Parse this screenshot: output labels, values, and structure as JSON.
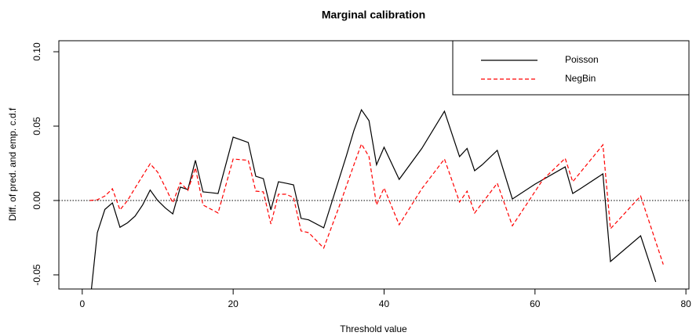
{
  "chart_data": {
    "type": "line",
    "title": "Marginal calibration",
    "x_label": "Threshold value",
    "y_label": "Diff. of pred. and emp. c.d.f",
    "xlim": [
      -3.1,
      80.4
    ],
    "ylim": [
      -0.0595,
      0.1074
    ],
    "xticks": [
      0,
      20,
      40,
      60,
      80
    ],
    "yticks": [
      -0.05,
      {
        "value": 0,
        "label": "0.00"
      },
      0.05,
      {
        "value": 0.1,
        "label": "0.10"
      }
    ],
    "reference_line": 0,
    "legend": "topright",
    "series": [
      {
        "name": "Poisson",
        "color": "#000000",
        "dash": "solid",
        "x": [
          1,
          2,
          3,
          4,
          5,
          6,
          7,
          8,
          9,
          10,
          11,
          12,
          13,
          14,
          15,
          16,
          17,
          18,
          20,
          22,
          23,
          24,
          25,
          26,
          27,
          28,
          29,
          30,
          32,
          35,
          36,
          37,
          38,
          39,
          40,
          42,
          45,
          48,
          50,
          51,
          52,
          53,
          55,
          57,
          60,
          64,
          65,
          66,
          69,
          70,
          74,
          76
        ],
        "values": [
          -0.07,
          -0.0216,
          -0.006,
          -0.0016,
          -0.018,
          -0.015,
          -0.0105,
          -0.003,
          0.007,
          0,
          -0.005,
          -0.009,
          0.009,
          0.0074,
          0.027,
          0.0058,
          0.0053,
          0.0047,
          0.0426,
          0.039,
          0.0163,
          0.0147,
          -0.0063,
          0.0126,
          0.0116,
          0.0105,
          -0.012,
          -0.013,
          -0.0184,
          0.03,
          0.047,
          0.061,
          0.0537,
          0.024,
          0.0358,
          0.0142,
          0.035,
          0.06,
          0.0295,
          0.035,
          0.02,
          0.024,
          0.0337,
          0.001,
          0.011,
          0.0226,
          0.0047,
          0.0079,
          0.0179,
          -0.041,
          -0.0237,
          -0.0547
        ]
      },
      {
        "name": "NegBin",
        "color": "#ff0000",
        "dash": "dashed",
        "x": [
          1,
          2,
          3,
          4,
          5,
          6,
          7,
          9,
          10,
          11,
          12,
          13,
          14,
          15,
          16,
          18,
          20,
          22,
          23,
          24,
          25,
          26,
          27,
          28,
          29,
          30,
          32,
          34,
          36,
          37,
          38,
          39,
          40,
          42,
          45,
          48,
          50,
          51,
          52,
          55,
          57,
          61,
          64,
          65,
          69,
          70,
          74,
          77
        ],
        "values": [
          0,
          0.0005,
          0.003,
          0.0079,
          -0.0063,
          0,
          0.0084,
          0.0247,
          0.019,
          0.009,
          -0.0016,
          0.012,
          0.0068,
          0.022,
          -0.003,
          -0.0084,
          0.0279,
          0.027,
          0.0063,
          0.0058,
          -0.0158,
          0.0042,
          0.0042,
          0.002,
          -0.0205,
          -0.0216,
          -0.032,
          -0.0047,
          0.024,
          0.038,
          0.0295,
          -0.003,
          0.0084,
          -0.0163,
          0.0079,
          0.0279,
          -0.001,
          0.0063,
          -0.0084,
          0.0116,
          -0.017,
          0.0137,
          0.0284,
          0.0126,
          0.0374,
          -0.019,
          0.003,
          -0.043
        ]
      }
    ]
  }
}
